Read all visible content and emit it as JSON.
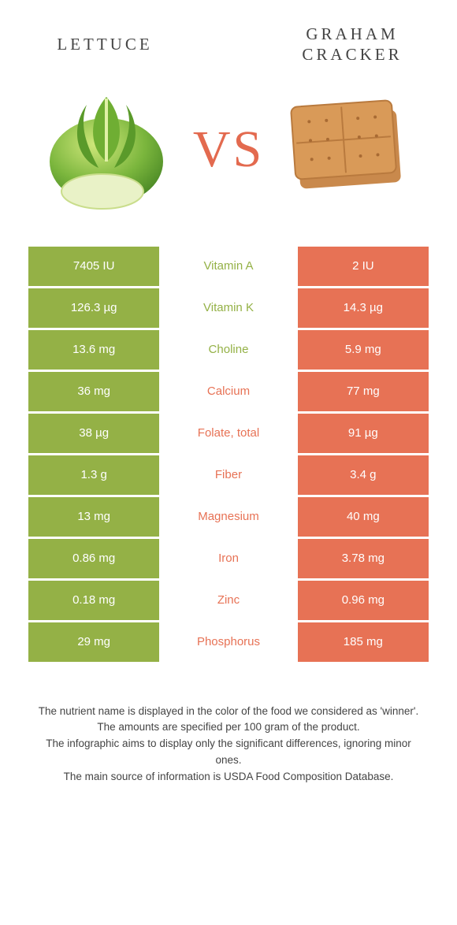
{
  "colors": {
    "left": "#94b146",
    "right": "#e77255",
    "vs": "#e36a4f"
  },
  "foods": {
    "left": "LETTUCE",
    "right": "GRAHAM CRACKER"
  },
  "vs": "VS",
  "rows": [
    {
      "nutrient": "Vitamin A",
      "left": "7405 IU",
      "right": "2 IU",
      "winner": "left"
    },
    {
      "nutrient": "Vitamin K",
      "left": "126.3 µg",
      "right": "14.3 µg",
      "winner": "left"
    },
    {
      "nutrient": "Choline",
      "left": "13.6 mg",
      "right": "5.9 mg",
      "winner": "left"
    },
    {
      "nutrient": "Calcium",
      "left": "36 mg",
      "right": "77 mg",
      "winner": "right"
    },
    {
      "nutrient": "Folate, total",
      "left": "38 µg",
      "right": "91 µg",
      "winner": "right"
    },
    {
      "nutrient": "Fiber",
      "left": "1.3 g",
      "right": "3.4 g",
      "winner": "right"
    },
    {
      "nutrient": "Magnesium",
      "left": "13 mg",
      "right": "40 mg",
      "winner": "right"
    },
    {
      "nutrient": "Iron",
      "left": "0.86 mg",
      "right": "3.78 mg",
      "winner": "right"
    },
    {
      "nutrient": "Zinc",
      "left": "0.18 mg",
      "right": "0.96 mg",
      "winner": "right"
    },
    {
      "nutrient": "Phosphorus",
      "left": "29 mg",
      "right": "185 mg",
      "winner": "right"
    }
  ],
  "footer": {
    "l1": "The nutrient name is displayed in the color of the food we considered as 'winner'.",
    "l2": "The amounts are specified per 100 gram of the product.",
    "l3": "The infographic aims to display only the significant differences, ignoring minor ones.",
    "l4": "The main source of information is USDA Food Composition Database."
  }
}
